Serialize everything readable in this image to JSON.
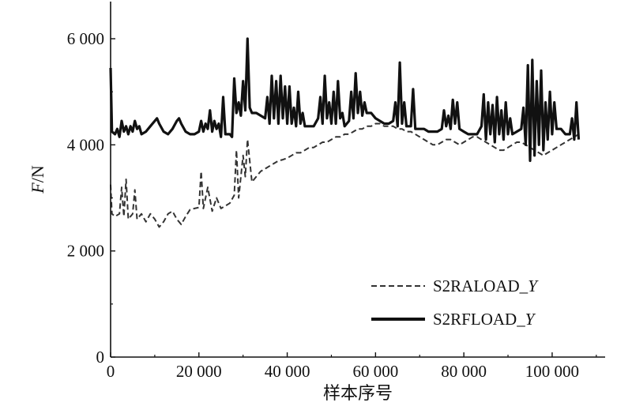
{
  "chart_data": {
    "type": "line",
    "xlabel": "样本序号",
    "ylabel_italic": "F",
    "ylabel_rest": "/N",
    "xlim": [
      0,
      112000
    ],
    "ylim": [
      0,
      6700
    ],
    "x_ticks": [
      {
        "value": 0,
        "label": "0"
      },
      {
        "value": 20000,
        "label": "20 000"
      },
      {
        "value": 40000,
        "label": "40 000"
      },
      {
        "value": 60000,
        "label": "60 000"
      },
      {
        "value": 80000,
        "label": "80 000"
      },
      {
        "value": 100000,
        "label": "100 000"
      }
    ],
    "y_ticks": [
      {
        "value": 0,
        "label": "0"
      },
      {
        "value": 2000,
        "label": "2 000"
      },
      {
        "value": 4000,
        "label": "4 000"
      },
      {
        "value": 6000,
        "label": "6 000"
      }
    ],
    "grid": false,
    "legend_position": "bottom-right",
    "series": [
      {
        "name_prefix": "S2RALOAD_",
        "name_italic": "Y",
        "style": "dashed",
        "color": "#333333",
        "points": [
          [
            0,
            3250
          ],
          [
            300,
            2700
          ],
          [
            1000,
            2650
          ],
          [
            2000,
            2700
          ],
          [
            2500,
            3200
          ],
          [
            3000,
            2650
          ],
          [
            3500,
            3350
          ],
          [
            4000,
            2600
          ],
          [
            5000,
            2700
          ],
          [
            5500,
            3150
          ],
          [
            6000,
            2600
          ],
          [
            7000,
            2700
          ],
          [
            8000,
            2550
          ],
          [
            9000,
            2700
          ],
          [
            10000,
            2600
          ],
          [
            11000,
            2450
          ],
          [
            12000,
            2550
          ],
          [
            13000,
            2700
          ],
          [
            14000,
            2750
          ],
          [
            15000,
            2600
          ],
          [
            16000,
            2500
          ],
          [
            17000,
            2650
          ],
          [
            18000,
            2780
          ],
          [
            19000,
            2800
          ],
          [
            20000,
            2820
          ],
          [
            20500,
            3500
          ],
          [
            21000,
            2800
          ],
          [
            22000,
            3200
          ],
          [
            23000,
            2750
          ],
          [
            24000,
            3000
          ],
          [
            25000,
            2800
          ],
          [
            26000,
            2850
          ],
          [
            27000,
            2900
          ],
          [
            28000,
            3050
          ],
          [
            28500,
            3900
          ],
          [
            29000,
            3000
          ],
          [
            30000,
            3800
          ],
          [
            30500,
            3400
          ],
          [
            31000,
            4100
          ],
          [
            32000,
            3300
          ],
          [
            33000,
            3400
          ],
          [
            34000,
            3500
          ],
          [
            35000,
            3550
          ],
          [
            36000,
            3600
          ],
          [
            37000,
            3650
          ],
          [
            38000,
            3700
          ],
          [
            39000,
            3720
          ],
          [
            40000,
            3750
          ],
          [
            41000,
            3800
          ],
          [
            42000,
            3850
          ],
          [
            43000,
            3850
          ],
          [
            44000,
            3900
          ],
          [
            45000,
            3950
          ],
          [
            46000,
            3950
          ],
          [
            47000,
            4000
          ],
          [
            48000,
            4050
          ],
          [
            49000,
            4050
          ],
          [
            50000,
            4100
          ],
          [
            51000,
            4150
          ],
          [
            52000,
            4150
          ],
          [
            53000,
            4200
          ],
          [
            54000,
            4200
          ],
          [
            55000,
            4250
          ],
          [
            56000,
            4300
          ],
          [
            57000,
            4300
          ],
          [
            58000,
            4350
          ],
          [
            59000,
            4350
          ],
          [
            60000,
            4400
          ],
          [
            61000,
            4400
          ],
          [
            62000,
            4350
          ],
          [
            63000,
            4350
          ],
          [
            64000,
            4350
          ],
          [
            65000,
            4300
          ],
          [
            66000,
            4300
          ],
          [
            67000,
            4250
          ],
          [
            68000,
            4250
          ],
          [
            69000,
            4200
          ],
          [
            70000,
            4150
          ],
          [
            71000,
            4100
          ],
          [
            72000,
            4050
          ],
          [
            73000,
            4000
          ],
          [
            74000,
            4000
          ],
          [
            75000,
            4050
          ],
          [
            76000,
            4100
          ],
          [
            77000,
            4100
          ],
          [
            78000,
            4050
          ],
          [
            79000,
            4000
          ],
          [
            80000,
            4050
          ],
          [
            81000,
            4100
          ],
          [
            82000,
            4150
          ],
          [
            83000,
            4150
          ],
          [
            84000,
            4100
          ],
          [
            85000,
            4050
          ],
          [
            86000,
            4000
          ],
          [
            87000,
            3950
          ],
          [
            88000,
            3900
          ],
          [
            89000,
            3900
          ],
          [
            90000,
            3950
          ],
          [
            91000,
            4000
          ],
          [
            92000,
            4050
          ],
          [
            93000,
            4050
          ],
          [
            94000,
            4000
          ],
          [
            95000,
            3950
          ],
          [
            96000,
            3900
          ],
          [
            97000,
            3850
          ],
          [
            98000,
            3800
          ],
          [
            99000,
            3850
          ],
          [
            100000,
            3900
          ],
          [
            101000,
            3950
          ],
          [
            102000,
            4000
          ],
          [
            103000,
            4050
          ],
          [
            104000,
            4100
          ],
          [
            105000,
            4150
          ],
          [
            106000,
            4200
          ]
        ]
      },
      {
        "name_prefix": "S2RFLOAD_",
        "name_italic": "Y",
        "style": "solid",
        "color": "#111111",
        "points": [
          [
            0,
            5450
          ],
          [
            300,
            4250
          ],
          [
            1000,
            4200
          ],
          [
            1500,
            4300
          ],
          [
            2000,
            4150
          ],
          [
            2500,
            4450
          ],
          [
            3000,
            4250
          ],
          [
            3500,
            4350
          ],
          [
            4000,
            4200
          ],
          [
            4500,
            4350
          ],
          [
            5000,
            4250
          ],
          [
            5500,
            4450
          ],
          [
            6000,
            4300
          ],
          [
            6500,
            4350
          ],
          [
            7000,
            4200
          ],
          [
            8000,
            4250
          ],
          [
            9000,
            4350
          ],
          [
            10000,
            4450
          ],
          [
            10500,
            4500
          ],
          [
            11000,
            4400
          ],
          [
            12000,
            4250
          ],
          [
            13000,
            4200
          ],
          [
            14000,
            4300
          ],
          [
            15000,
            4450
          ],
          [
            15500,
            4500
          ],
          [
            16000,
            4400
          ],
          [
            17000,
            4250
          ],
          [
            18000,
            4200
          ],
          [
            19000,
            4200
          ],
          [
            20000,
            4250
          ],
          [
            20500,
            4450
          ],
          [
            21000,
            4250
          ],
          [
            21500,
            4400
          ],
          [
            22000,
            4300
          ],
          [
            22500,
            4650
          ],
          [
            23000,
            4250
          ],
          [
            23500,
            4450
          ],
          [
            24000,
            4300
          ],
          [
            24500,
            4400
          ],
          [
            25000,
            4150
          ],
          [
            25500,
            4900
          ],
          [
            26000,
            4200
          ],
          [
            27000,
            4200
          ],
          [
            27500,
            4150
          ],
          [
            28000,
            5250
          ],
          [
            28500,
            4600
          ],
          [
            29000,
            4800
          ],
          [
            29500,
            4550
          ],
          [
            30000,
            5200
          ],
          [
            30500,
            4650
          ],
          [
            31000,
            6000
          ],
          [
            31500,
            4700
          ],
          [
            32000,
            4600
          ],
          [
            33000,
            4600
          ],
          [
            34000,
            4550
          ],
          [
            35000,
            4500
          ],
          [
            35500,
            4900
          ],
          [
            36000,
            4400
          ],
          [
            36500,
            5300
          ],
          [
            37000,
            4500
          ],
          [
            37500,
            5200
          ],
          [
            38000,
            4400
          ],
          [
            38500,
            5300
          ],
          [
            39000,
            4500
          ],
          [
            39500,
            5100
          ],
          [
            40000,
            4400
          ],
          [
            40500,
            5100
          ],
          [
            41000,
            4400
          ],
          [
            41500,
            4700
          ],
          [
            42000,
            4350
          ],
          [
            42500,
            5000
          ],
          [
            43000,
            4400
          ],
          [
            43500,
            4600
          ],
          [
            44000,
            4350
          ],
          [
            45000,
            4350
          ],
          [
            46000,
            4350
          ],
          [
            47000,
            4500
          ],
          [
            47500,
            4900
          ],
          [
            48000,
            4400
          ],
          [
            48500,
            5300
          ],
          [
            49000,
            4500
          ],
          [
            49500,
            4800
          ],
          [
            50000,
            4400
          ],
          [
            50500,
            5000
          ],
          [
            51000,
            4400
          ],
          [
            51500,
            5200
          ],
          [
            52000,
            4500
          ],
          [
            52500,
            4600
          ],
          [
            53000,
            4350
          ],
          [
            54000,
            4450
          ],
          [
            54500,
            5000
          ],
          [
            55000,
            4500
          ],
          [
            55500,
            5350
          ],
          [
            56000,
            4600
          ],
          [
            56500,
            5000
          ],
          [
            57000,
            4550
          ],
          [
            57500,
            4800
          ],
          [
            58000,
            4600
          ],
          [
            59000,
            4600
          ],
          [
            60000,
            4500
          ],
          [
            61000,
            4450
          ],
          [
            62000,
            4400
          ],
          [
            63000,
            4400
          ],
          [
            64000,
            4450
          ],
          [
            64500,
            4800
          ],
          [
            65000,
            4350
          ],
          [
            65500,
            5550
          ],
          [
            66000,
            4400
          ],
          [
            66500,
            4800
          ],
          [
            67000,
            4350
          ],
          [
            68000,
            4350
          ],
          [
            68500,
            5050
          ],
          [
            69000,
            4300
          ],
          [
            70000,
            4300
          ],
          [
            71000,
            4300
          ],
          [
            72000,
            4250
          ],
          [
            73000,
            4250
          ],
          [
            74000,
            4250
          ],
          [
            75000,
            4300
          ],
          [
            75500,
            4650
          ],
          [
            76000,
            4350
          ],
          [
            76500,
            4550
          ],
          [
            77000,
            4300
          ],
          [
            77500,
            4850
          ],
          [
            78000,
            4400
          ],
          [
            78500,
            4800
          ],
          [
            79000,
            4300
          ],
          [
            80000,
            4250
          ],
          [
            81000,
            4200
          ],
          [
            82000,
            4200
          ],
          [
            83000,
            4200
          ],
          [
            84000,
            4350
          ],
          [
            84500,
            4950
          ],
          [
            85000,
            4100
          ],
          [
            85500,
            4800
          ],
          [
            86000,
            4200
          ],
          [
            86500,
            4750
          ],
          [
            87000,
            4050
          ],
          [
            87500,
            4900
          ],
          [
            88000,
            4200
          ],
          [
            88500,
            4650
          ],
          [
            89000,
            4100
          ],
          [
            89500,
            4800
          ],
          [
            90000,
            4200
          ],
          [
            90500,
            4500
          ],
          [
            91000,
            4200
          ],
          [
            92000,
            4250
          ],
          [
            93000,
            4300
          ],
          [
            93500,
            4700
          ],
          [
            94000,
            4000
          ],
          [
            94500,
            5500
          ],
          [
            95000,
            3700
          ],
          [
            95500,
            5600
          ],
          [
            96000,
            3800
          ],
          [
            96500,
            5200
          ],
          [
            97000,
            4000
          ],
          [
            97500,
            5400
          ],
          [
            98000,
            3900
          ],
          [
            98500,
            4800
          ],
          [
            99000,
            4100
          ],
          [
            99500,
            5000
          ],
          [
            100000,
            4200
          ],
          [
            100500,
            4800
          ],
          [
            101000,
            4300
          ],
          [
            102000,
            4300
          ],
          [
            103000,
            4200
          ],
          [
            104000,
            4200
          ],
          [
            104500,
            4500
          ],
          [
            105000,
            4100
          ],
          [
            105500,
            4800
          ],
          [
            106000,
            4100
          ]
        ]
      }
    ]
  }
}
